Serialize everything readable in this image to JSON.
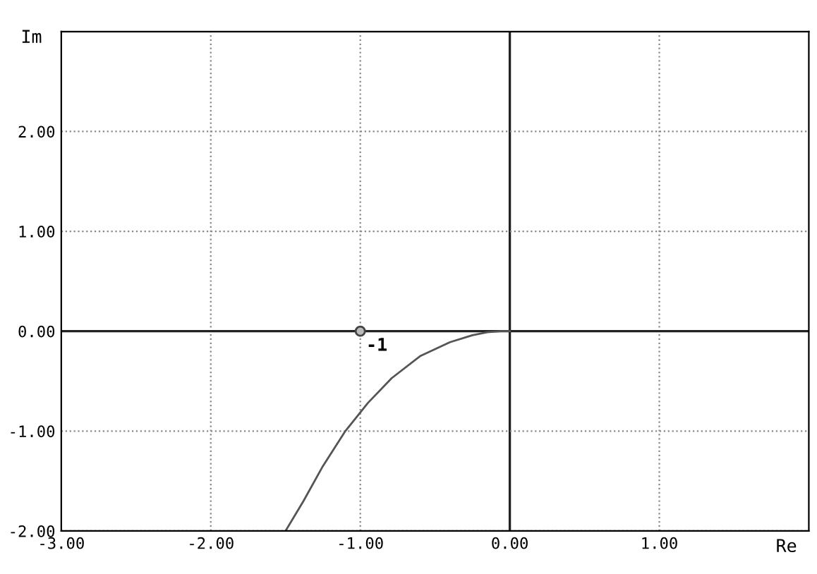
{
  "chart_data": {
    "type": "line",
    "xlabel": "Re",
    "ylabel": "Im",
    "xlim": [
      -3,
      2
    ],
    "ylim": [
      -2,
      3
    ],
    "xticks": [
      {
        "value": -3,
        "label": "-3.00"
      },
      {
        "value": -2,
        "label": "-2.00"
      },
      {
        "value": -1,
        "label": "-1.00"
      },
      {
        "value": 0,
        "label": "0.00"
      },
      {
        "value": 1,
        "label": "1.00"
      }
    ],
    "yticks": [
      {
        "value": -2,
        "label": "-2.00"
      },
      {
        "value": -1,
        "label": "-1.00"
      },
      {
        "value": 0,
        "label": "0.00"
      },
      {
        "value": 1,
        "label": "1.00"
      },
      {
        "value": 2,
        "label": "2.00"
      }
    ],
    "grid": true,
    "series": [
      {
        "color": "#555555",
        "x": [
          -1.5,
          -1.38,
          -1.25,
          -1.1,
          -0.95,
          -0.79,
          -0.6,
          -0.4,
          -0.25,
          -0.15,
          -0.06,
          0
        ],
        "values": [
          -2,
          -1.7,
          -1.35,
          -1.0,
          -0.72,
          -0.47,
          -0.25,
          -0.11,
          -0.04,
          -0.01,
          0,
          0
        ]
      },
      {
        "type": "scatter",
        "color": "#444444",
        "marker": "circle",
        "x": [
          -1
        ],
        "values": [
          0
        ]
      }
    ],
    "annotations": [
      {
        "text": "-1",
        "x": -1,
        "y": 0
      }
    ]
  }
}
